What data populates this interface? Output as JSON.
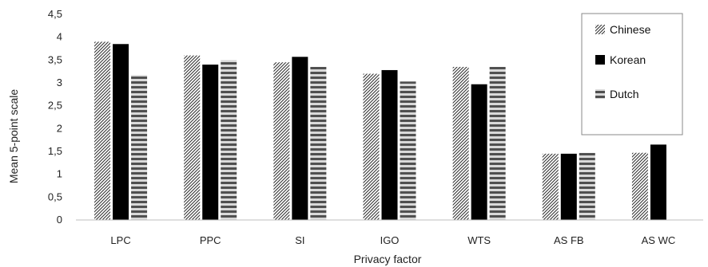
{
  "chart_data": {
    "type": "bar",
    "xlabel": "Privacy factor",
    "ylabel": "Mean 5-point scale",
    "ylim": [
      0,
      4.5
    ],
    "yticks": [
      "0",
      "0,5",
      "1",
      "1,5",
      "2",
      "2,5",
      "3",
      "3,5",
      "4",
      "4,5"
    ],
    "grid": false,
    "legend_position": "right",
    "categories": [
      "LPC",
      "PPC",
      "SI",
      "IGO",
      "WTS",
      "AS FB",
      "AS WC"
    ],
    "series": [
      {
        "name": "Chinese",
        "pattern": "diagonal-hatch",
        "color": "#333333",
        "values": [
          3.9,
          3.6,
          3.45,
          3.2,
          3.35,
          1.45,
          1.47
        ]
      },
      {
        "name": "Korean",
        "pattern": "solid",
        "color": "#000000",
        "values": [
          3.85,
          3.4,
          3.57,
          3.28,
          2.97,
          1.45,
          1.65
        ]
      },
      {
        "name": "Dutch",
        "pattern": "horizontal-stripes",
        "color": "#555555",
        "values": [
          3.17,
          3.5,
          3.35,
          3.03,
          3.35,
          1.47,
          null
        ]
      }
    ]
  }
}
